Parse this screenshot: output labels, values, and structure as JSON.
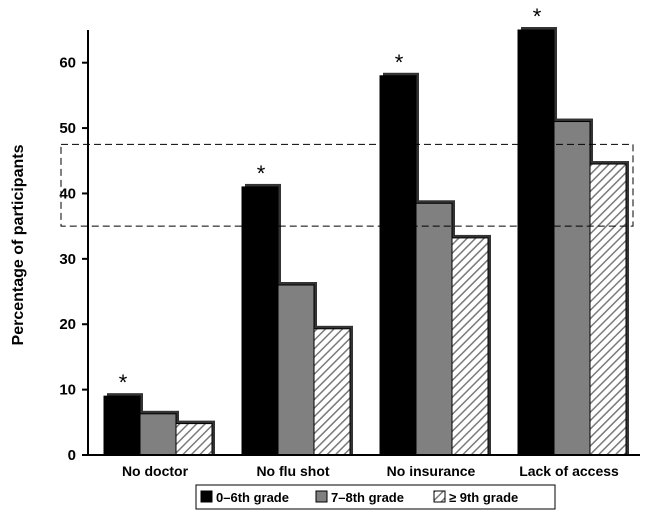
{
  "chart_data": {
    "type": "bar",
    "title": "",
    "xlabel": "",
    "ylabel": "Percentage of participants",
    "ylim": [
      0,
      65
    ],
    "yticks": [
      0,
      10,
      20,
      30,
      40,
      50,
      60
    ],
    "ytick_labels": [
      "0",
      "10",
      "20",
      "30",
      "40",
      "50",
      "60"
    ],
    "categories": [
      "No doctor",
      "No flu shot",
      "No insurance",
      "Lack of access"
    ],
    "series": [
      {
        "name": "0–6th grade",
        "values": [
          9,
          41,
          58,
          65
        ],
        "color": "#000000",
        "pattern": "solid"
      },
      {
        "name": "7–8th grade",
        "values": [
          6.3,
          26,
          38.5,
          51
        ],
        "color": "#808080",
        "pattern": "solid"
      },
      {
        "name": "≥ 9th grade",
        "values": [
          4.8,
          19.3,
          33.2,
          44.5
        ],
        "color": "#ffffff",
        "pattern": "diagonal-hatch"
      }
    ],
    "significance_marker": "*",
    "significant_categories": [
      "No doctor",
      "No flu shot",
      "No insurance",
      "Lack of access"
    ],
    "highlight_band": [
      35,
      47.5
    ],
    "legend_position": "bottom",
    "grid": false
  }
}
